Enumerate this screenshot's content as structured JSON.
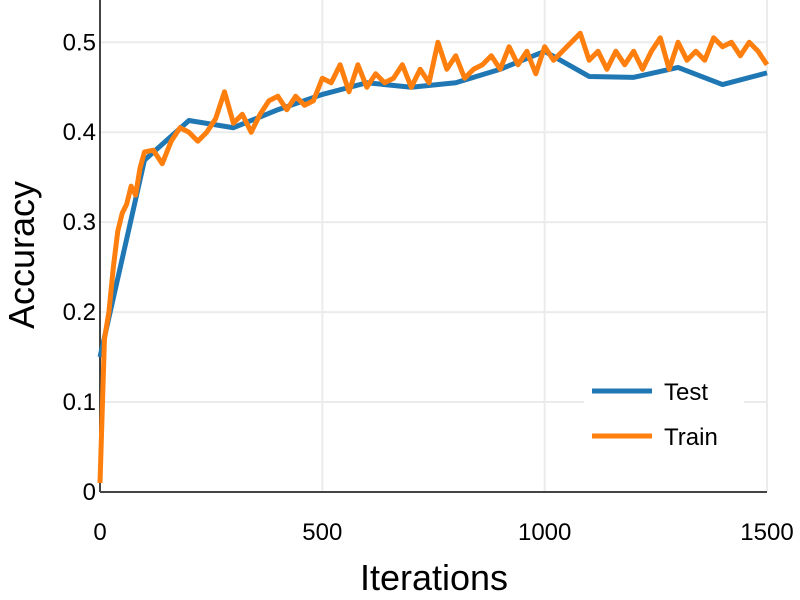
{
  "chart_data": {
    "type": "line",
    "xlabel": "Iterations",
    "ylabel": "Accuracy",
    "xlim": [
      0,
      1500
    ],
    "ylim": [
      0,
      0.547
    ],
    "xticks": [
      0,
      500,
      1000,
      1500
    ],
    "yticks": [
      0,
      0.1,
      0.2,
      0.3,
      0.4,
      0.5
    ],
    "grid": true,
    "legend": "lower right",
    "series": [
      {
        "name": "Test",
        "color": "#1f77b4",
        "x": [
          0,
          100,
          200,
          300,
          400,
          500,
          600,
          700,
          800,
          900,
          1000,
          1100,
          1200,
          1300,
          1400,
          1500
        ],
        "values": [
          0.15,
          0.369,
          0.413,
          0.405,
          0.425,
          0.442,
          0.455,
          0.45,
          0.455,
          0.47,
          0.49,
          0.462,
          0.461,
          0.472,
          0.453,
          0.466
        ]
      },
      {
        "name": "Train",
        "color": "#ff7f0e",
        "x": [
          0,
          10,
          20,
          30,
          40,
          50,
          60,
          70,
          80,
          90,
          100,
          120,
          140,
          160,
          180,
          200,
          220,
          240,
          260,
          280,
          300,
          320,
          340,
          360,
          380,
          400,
          420,
          440,
          460,
          480,
          500,
          520,
          540,
          560,
          580,
          600,
          620,
          640,
          660,
          680,
          700,
          720,
          740,
          760,
          780,
          800,
          820,
          840,
          860,
          880,
          900,
          920,
          940,
          960,
          980,
          1000,
          1020,
          1040,
          1060,
          1080,
          1100,
          1120,
          1140,
          1160,
          1180,
          1200,
          1220,
          1240,
          1260,
          1280,
          1300,
          1320,
          1340,
          1360,
          1380,
          1400,
          1420,
          1440,
          1460,
          1480,
          1500
        ],
        "values": [
          0.01,
          0.17,
          0.2,
          0.25,
          0.29,
          0.31,
          0.32,
          0.34,
          0.33,
          0.36,
          0.378,
          0.38,
          0.365,
          0.39,
          0.405,
          0.4,
          0.39,
          0.4,
          0.415,
          0.445,
          0.41,
          0.42,
          0.4,
          0.42,
          0.435,
          0.44,
          0.425,
          0.44,
          0.43,
          0.435,
          0.46,
          0.455,
          0.475,
          0.445,
          0.475,
          0.45,
          0.465,
          0.455,
          0.46,
          0.475,
          0.45,
          0.47,
          0.455,
          0.5,
          0.47,
          0.485,
          0.46,
          0.47,
          0.475,
          0.485,
          0.47,
          0.495,
          0.475,
          0.49,
          0.465,
          0.495,
          0.48,
          0.49,
          0.5,
          0.51,
          0.48,
          0.49,
          0.47,
          0.49,
          0.475,
          0.49,
          0.47,
          0.49,
          0.505,
          0.47,
          0.5,
          0.48,
          0.49,
          0.48,
          0.505,
          0.495,
          0.5,
          0.485,
          0.5,
          0.49,
          0.475
        ]
      }
    ]
  }
}
